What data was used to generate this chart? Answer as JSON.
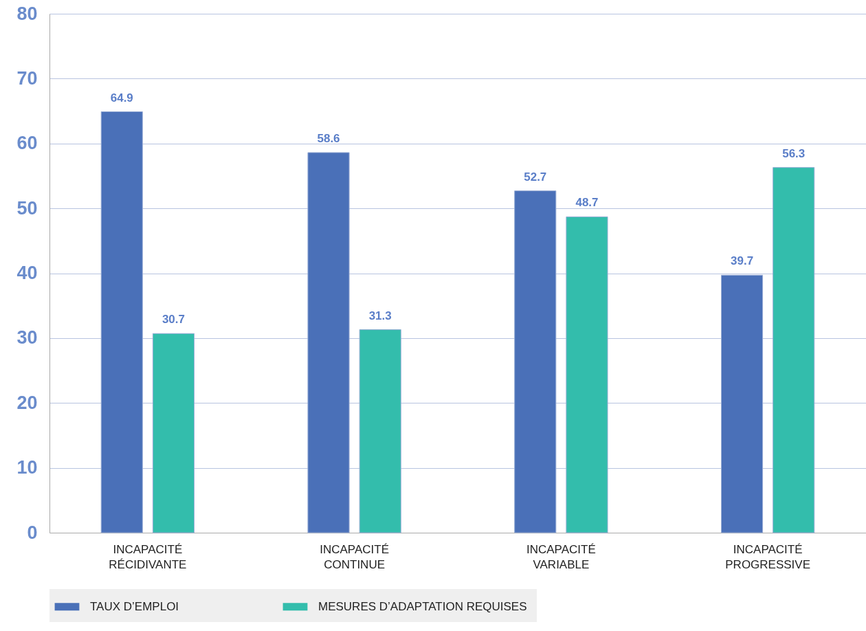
{
  "chart_data": {
    "type": "bar",
    "categories": [
      "INCAPACITÉ RÉCIDIVANTE",
      "INCAPACITÉ CONTINUE",
      "INCAPACITÉ VARIABLE",
      "INCAPACITÉ PROGRESSIVE"
    ],
    "series": [
      {
        "name": "TAUX D’EMPLOI",
        "color": "#4a70b8",
        "values": [
          64.9,
          58.6,
          52.7,
          39.7
        ]
      },
      {
        "name": "MESURES D’ADAPTATION REQUISES",
        "color": "#33bdac",
        "values": [
          30.7,
          31.3,
          48.7,
          56.3
        ]
      }
    ],
    "ylim": [
      0,
      80
    ],
    "yticks": [
      0,
      10,
      20,
      30,
      40,
      50,
      60,
      70,
      80
    ],
    "grid": "y",
    "legend": "bottom",
    "data_labels": true
  }
}
